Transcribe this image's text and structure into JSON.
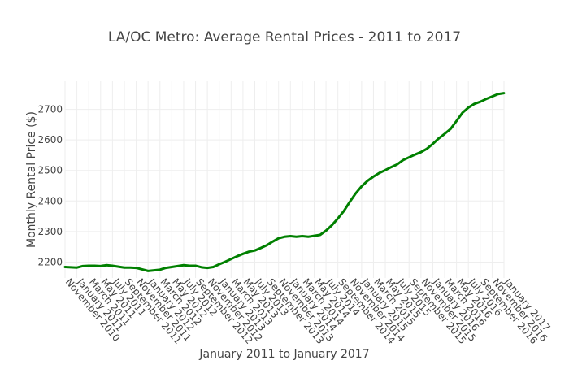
{
  "chart_data": {
    "type": "line",
    "title": "LA/OC Metro: Average Rental Prices - 2011 to 2017",
    "xlabel": "January 2011 to January 2017",
    "ylabel": "Monthly Rental Price ($)",
    "ylim": [
      2148,
      2792
    ],
    "yticks": [
      2200,
      2300,
      2400,
      2500,
      2600,
      2700
    ],
    "grid": true,
    "line_color": "#008000",
    "x": [
      "November 2010",
      "December 2010",
      "January 2011",
      "February 2011",
      "March 2011",
      "April 2011",
      "May 2011",
      "June 2011",
      "July 2011",
      "August 2011",
      "September 2011",
      "October 2011",
      "November 2011",
      "December 2011",
      "January 2012",
      "February 2012",
      "March 2012",
      "April 2012",
      "May 2012",
      "June 2012",
      "July 2012",
      "August 2012",
      "September 2012",
      "October 2012",
      "November 2012",
      "December 2012",
      "January 2013",
      "February 2013",
      "March 2013",
      "April 2013",
      "May 2013",
      "June 2013",
      "July 2013",
      "August 2013",
      "September 2013",
      "October 2013",
      "November 2013",
      "December 2013",
      "January 2014",
      "February 2014",
      "March 2014",
      "April 2014",
      "May 2014",
      "June 2014",
      "July 2014",
      "August 2014",
      "September 2014",
      "October 2014",
      "November 2014",
      "December 2014",
      "January 2015",
      "February 2015",
      "March 2015",
      "April 2015",
      "May 2015",
      "June 2015",
      "July 2015",
      "August 2015",
      "September 2015",
      "October 2015",
      "November 2015",
      "December 2015",
      "January 2016",
      "February 2016",
      "March 2016",
      "April 2016",
      "May 2016",
      "June 2016",
      "July 2016",
      "August 2016",
      "September 2016",
      "October 2016",
      "November 2016",
      "December 2016",
      "January 2017"
    ],
    "series": [
      {
        "values": [
          2184,
          2183,
          2182,
          2187,
          2188,
          2188,
          2187,
          2190,
          2188,
          2185,
          2182,
          2182,
          2181,
          2176,
          2171,
          2173,
          2175,
          2181,
          2184,
          2187,
          2190,
          2188,
          2188,
          2183,
          2181,
          2184,
          2193,
          2201,
          2210,
          2219,
          2227,
          2234,
          2238,
          2246,
          2255,
          2267,
          2278,
          2283,
          2285,
          2283,
          2285,
          2283,
          2286,
          2289,
          2303,
          2321,
          2343,
          2367,
          2397,
          2425,
          2448,
          2466,
          2480,
          2492,
          2501,
          2511,
          2520,
          2534,
          2543,
          2552,
          2560,
          2571,
          2587,
          2605,
          2620,
          2636,
          2662,
          2689,
          2706,
          2718,
          2725,
          2734,
          2742,
          2750,
          2753
        ]
      }
    ],
    "xticks": [
      "November 2010",
      "January 2011",
      "March 2011",
      "May 2011",
      "July 2011",
      "September 2011",
      "November 2011",
      "January 2012",
      "March 2012",
      "May 2012",
      "July 2012",
      "September 2012",
      "November 2012",
      "January 2013",
      "March 2013",
      "May 2013",
      "July 2013",
      "September 2013",
      "November 2013",
      "January 2014",
      "March 2014",
      "May 2014",
      "July 2014",
      "September 2014",
      "November 2014",
      "January 2015",
      "March 2015",
      "May 2015",
      "July 2015",
      "September 2015",
      "November 2015",
      "January 2016",
      "March 2016",
      "May 2016",
      "July 2016",
      "September 2016",
      "November 2016",
      "January 2017"
    ]
  }
}
